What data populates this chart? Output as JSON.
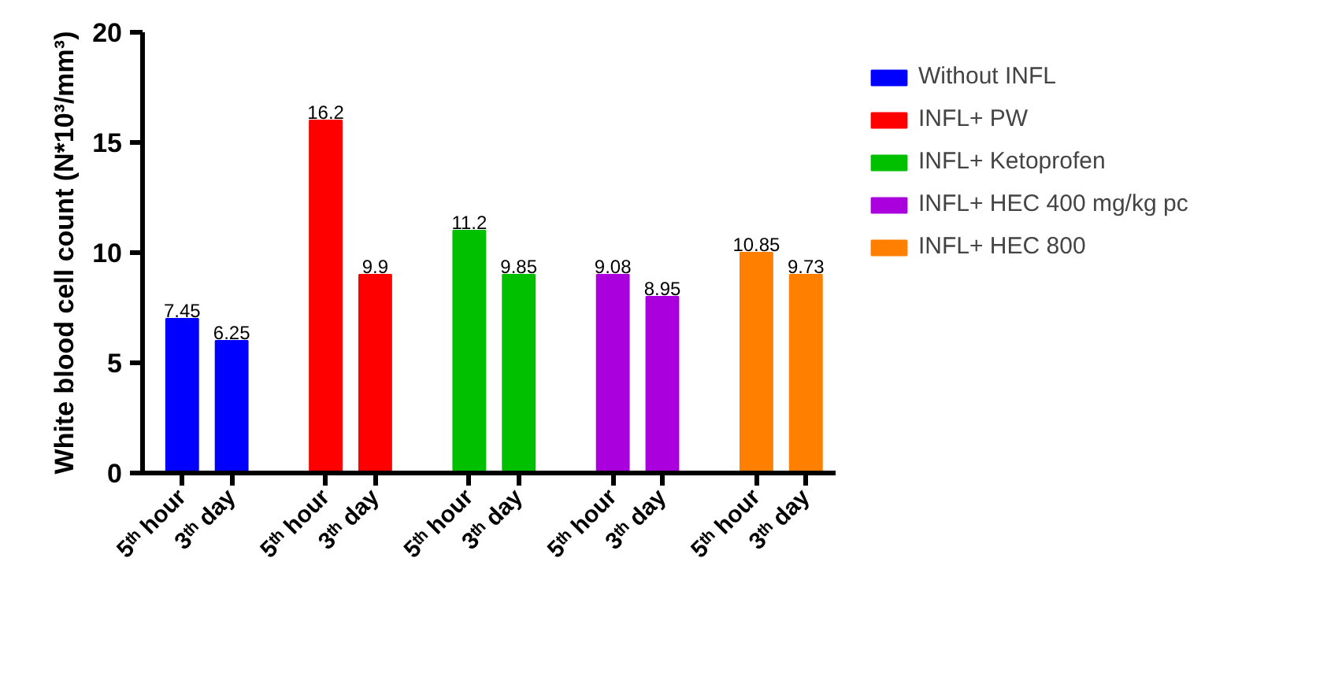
{
  "chart_data": {
    "type": "bar",
    "ylabel": "White blood cell count (N*10³/mm³)",
    "categories": [
      "5ᵗʰ hour",
      "3ᵗʰ day",
      "5ᵗʰ hour",
      "3ᵗʰ day",
      "5ᵗʰ hour",
      "3ᵗʰ day",
      "5ᵗʰ hour",
      "3ᵗʰ day",
      "5ᵗʰ hour",
      "3ᵗʰ day"
    ],
    "series": [
      {
        "name": "Without INFL",
        "color": "#0000ff",
        "values": [
          7,
          6,
          null,
          null,
          null,
          null,
          null,
          null,
          null,
          null
        ]
      },
      {
        "name": "INFL+ PW",
        "color": "#ff0000",
        "values": [
          null,
          null,
          16,
          9,
          null,
          null,
          null,
          null,
          null,
          null
        ]
      },
      {
        "name": "INFL+ Ketoprofen",
        "color": "#00c000",
        "values": [
          null,
          null,
          null,
          null,
          11,
          9,
          null,
          null,
          null,
          null
        ]
      },
      {
        "name": "INFL+ HEC 400 mg/kg pc",
        "color": "#aa00dd",
        "values": [
          null,
          null,
          null,
          null,
          null,
          null,
          9,
          8,
          null,
          null
        ]
      },
      {
        "name": "INFL+ HEC 800",
        "color": "#ff8000",
        "values": [
          null,
          null,
          null,
          null,
          null,
          null,
          null,
          null,
          10,
          9
        ]
      }
    ],
    "value_labels": [
      "7.45",
      "6.25",
      "16.2",
      "9.9",
      "11.2",
      "9.85",
      "9.08",
      "8.95",
      "10.85",
      "9.73"
    ],
    "ylim": [
      0,
      20
    ],
    "yticks": [
      0,
      5,
      10,
      15,
      20
    ],
    "grid": false,
    "legend": "right"
  }
}
